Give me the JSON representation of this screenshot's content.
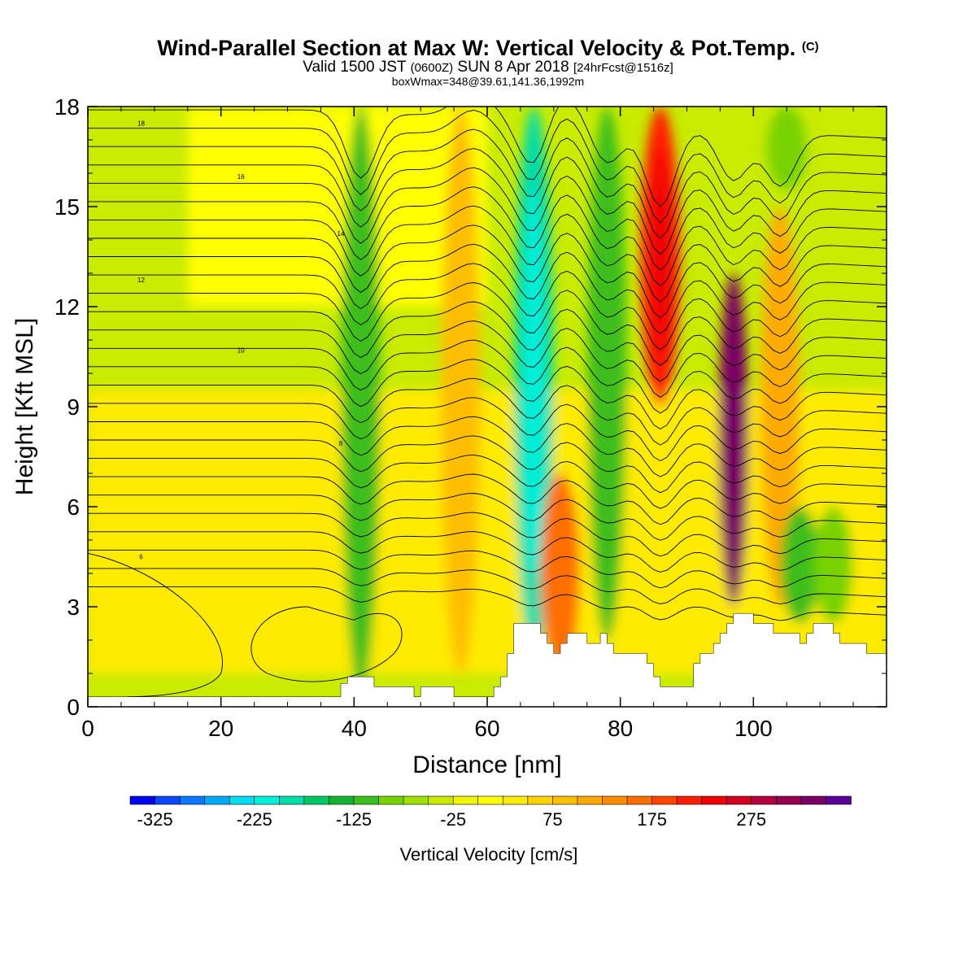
{
  "header": {
    "title": "Wind-Parallel Section at Max W: Vertical Velocity & Pot.Temp.",
    "copyright": "(C)",
    "valid_prefix": "Valid 1500 JST",
    "valid_utc": "(0600Z)",
    "valid_date": "SUN 8 Apr 2018",
    "forecast": "[24hrFcst@1516z]",
    "boxwmax": "boxWmax=348@39.61,141.36,1992m"
  },
  "chart_data": {
    "type": "heatmap",
    "xlabel": "Distance [nm]",
    "ylabel": "Height [Kft MSL]",
    "xlim": [
      0,
      120
    ],
    "ylim": [
      0,
      18
    ],
    "x_ticks": [
      "0",
      "20",
      "40",
      "60",
      "80",
      "100"
    ],
    "y_ticks": [
      "0",
      "3",
      "6",
      "9",
      "12",
      "15",
      "18"
    ],
    "colorbar": {
      "label": "Vertical Velocity [cm/s]",
      "tick_labels": [
        "-325",
        "-225",
        "-125",
        "-25",
        "75",
        "175",
        "275"
      ],
      "colors": [
        "#0000f0",
        "#0a46ff",
        "#0a78ff",
        "#00aaf5",
        "#00dcf0",
        "#00f0dc",
        "#00dcaa",
        "#00c864",
        "#14b432",
        "#3cbe1e",
        "#78d200",
        "#a0e100",
        "#c8eb00",
        "#f0f500",
        "#ffff00",
        "#ffeb00",
        "#ffd200",
        "#ffbe00",
        "#ffaa00",
        "#ff8c00",
        "#ff6e00",
        "#ff4600",
        "#ff1e00",
        "#f00000",
        "#d2001e",
        "#b4003c",
        "#960050",
        "#780064",
        "#5a0096"
      ]
    },
    "velocity_regions": [
      {
        "name": "background",
        "value": -40
      },
      {
        "name": "low-level band",
        "value": 25
      },
      {
        "name": "upper band",
        "value": 10
      },
      {
        "name": "downdraft 40nm",
        "x_center": 41,
        "y_top": 18,
        "y_bottom": 0.5,
        "value": -110
      },
      {
        "name": "updraft 58nm",
        "x_center": 56,
        "y_top": 18,
        "y_bottom": 1,
        "value": 90
      },
      {
        "name": "downdraft 67nm",
        "x_center": 67,
        "y_top": 18,
        "y_bottom": 1.5,
        "value": -200
      },
      {
        "name": "updraft 71nm",
        "x_center": 71,
        "y_top": 7,
        "y_bottom": 1,
        "value": 150
      },
      {
        "name": "downdraft 78nm",
        "x_center": 78,
        "y_top": 18,
        "y_bottom": 2,
        "value": -120
      },
      {
        "name": "updraft 86nm",
        "x_center": 86,
        "y_top": 18,
        "y_bottom": 9,
        "value": 220
      },
      {
        "name": "updraft 97nm",
        "x_center": 97,
        "y_top": 13,
        "y_bottom": 3,
        "value": 330
      },
      {
        "name": "updraft 104nm",
        "x_center": 104,
        "y_top": 15,
        "y_bottom": 3,
        "value": 120
      },
      {
        "name": "downdraft 107nm",
        "x_center": 107,
        "y_top": 6,
        "y_bottom": 2.5,
        "value": -110
      },
      {
        "name": "downdraft 112nm",
        "x_center": 112,
        "y_top": 6,
        "y_bottom": 2.5,
        "value": -100
      },
      {
        "name": "downdraft 105nm upper",
        "x_center": 105,
        "y_top": 18,
        "y_bottom": 15.5,
        "value": -100
      }
    ],
    "terrain": [
      [
        0,
        0.3
      ],
      [
        37,
        0.3
      ],
      [
        38,
        0.7
      ],
      [
        39,
        0.9
      ],
      [
        42,
        0.9
      ],
      [
        43,
        0.6
      ],
      [
        48,
        0.6
      ],
      [
        49,
        0.3
      ],
      [
        50,
        0.6
      ],
      [
        54,
        0.6
      ],
      [
        55,
        0.3
      ],
      [
        60,
        0.3
      ],
      [
        61,
        0.6
      ],
      [
        62,
        0.9
      ],
      [
        63,
        1.6
      ],
      [
        64,
        2.5
      ],
      [
        66,
        2.5
      ],
      [
        68,
        2.2
      ],
      [
        69,
        1.9
      ],
      [
        70,
        1.6
      ],
      [
        71,
        1.9
      ],
      [
        72,
        2.2
      ],
      [
        74,
        2.2
      ],
      [
        75,
        1.9
      ],
      [
        76,
        1.9
      ],
      [
        77,
        2.2
      ],
      [
        78,
        1.9
      ],
      [
        79,
        1.6
      ],
      [
        84,
        1.3
      ],
      [
        85,
        0.9
      ],
      [
        86,
        0.6
      ],
      [
        90,
        0.6
      ],
      [
        91,
        1.3
      ],
      [
        92,
        1.6
      ],
      [
        94,
        1.9
      ],
      [
        95,
        2.2
      ],
      [
        96,
        2.5
      ],
      [
        97,
        2.8
      ],
      [
        99,
        2.8
      ],
      [
        100,
        2.5
      ],
      [
        102,
        2.5
      ],
      [
        103,
        2.2
      ],
      [
        106,
        2.2
      ],
      [
        107,
        1.9
      ],
      [
        108,
        2.2
      ],
      [
        109,
        2.5
      ],
      [
        111,
        2.5
      ],
      [
        112,
        2.2
      ],
      [
        113,
        1.9
      ],
      [
        116,
        1.9
      ],
      [
        117,
        1.6
      ],
      [
        120,
        1.6
      ]
    ],
    "theta_contours": [
      {
        "label": "18",
        "y_left": 17.5
      },
      {
        "label": "16",
        "y_left": 15.9
      },
      {
        "label": "14",
        "y_left": 14.2
      },
      {
        "label": "12",
        "y_left": 12.8
      },
      {
        "label": "10",
        "y_left": 10.7
      },
      {
        "label": "8",
        "y_left": 7.9
      },
      {
        "label": "6",
        "y_left": 4.5
      }
    ]
  }
}
